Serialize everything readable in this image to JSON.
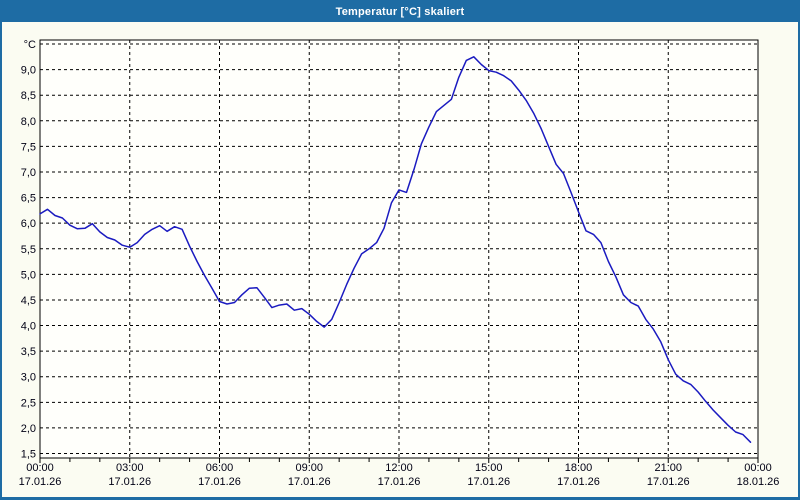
{
  "window": {
    "title": "Temperatur [°C] skaliert"
  },
  "colors": {
    "titlebar_bg": "#1e6ca4",
    "titlebar_text": "#ffffff",
    "window_border": "#1e6ca4",
    "content_bg": "#fbfcf2",
    "plot_bg": "#fffffb",
    "grid": "#000000",
    "axis": "#000000",
    "text": "#000014",
    "line": "#1b1bc0"
  },
  "chart_data": {
    "type": "line",
    "title": "Temperatur [°C] skaliert",
    "y_unit_label": "°C",
    "ylim": [
      1.4,
      9.6
    ],
    "y_gridlines_from": 1.5,
    "y_gridlines_to": 9.5,
    "y_gridline_step": 0.5,
    "grid": "dashed",
    "legend": "none",
    "xlim_hours": [
      0,
      24
    ],
    "x_minor_tick_interval_hours": 1,
    "x_major_tick_interval_hours": 3,
    "y_ticks": [
      {
        "value": 9.0,
        "label": "9,0"
      },
      {
        "value": 8.5,
        "label": "8,5"
      },
      {
        "value": 8.0,
        "label": "8,0"
      },
      {
        "value": 7.5,
        "label": "7,5"
      },
      {
        "value": 7.0,
        "label": "7,0"
      },
      {
        "value": 6.5,
        "label": "6,5"
      },
      {
        "value": 6.0,
        "label": "6,0"
      },
      {
        "value": 5.5,
        "label": "5,5"
      },
      {
        "value": 5.0,
        "label": "5,0"
      },
      {
        "value": 4.5,
        "label": "4,5"
      },
      {
        "value": 4.0,
        "label": "4,0"
      },
      {
        "value": 3.5,
        "label": "3,5"
      },
      {
        "value": 3.0,
        "label": "3,0"
      },
      {
        "value": 2.5,
        "label": "2,5"
      },
      {
        "value": 2.0,
        "label": "2,0"
      },
      {
        "value": 1.5,
        "label": "1,5"
      }
    ],
    "x_major_ticks": [
      {
        "hour": 0,
        "time": "00:00",
        "date": "17.01.26"
      },
      {
        "hour": 3,
        "time": "03:00",
        "date": "17.01.26"
      },
      {
        "hour": 6,
        "time": "06:00",
        "date": "17.01.26"
      },
      {
        "hour": 9,
        "time": "09:00",
        "date": "17.01.26"
      },
      {
        "hour": 12,
        "time": "12:00",
        "date": "17.01.26"
      },
      {
        "hour": 15,
        "time": "15:00",
        "date": "17.01.26"
      },
      {
        "hour": 18,
        "time": "18:00",
        "date": "17.01.26"
      },
      {
        "hour": 21,
        "time": "21:00",
        "date": "17.01.26"
      },
      {
        "hour": 24,
        "time": "00:00",
        "date": "18.01.26"
      }
    ],
    "series": [
      {
        "name": "Temperatur",
        "unit": "°C",
        "color": "#1b1bc0",
        "points": [
          [
            0.0,
            6.18
          ],
          [
            0.25,
            6.27
          ],
          [
            0.5,
            6.15
          ],
          [
            0.75,
            6.1
          ],
          [
            1.0,
            5.96
          ],
          [
            1.25,
            5.89
          ],
          [
            1.5,
            5.9
          ],
          [
            1.75,
            5.99
          ],
          [
            2.0,
            5.83
          ],
          [
            2.25,
            5.72
          ],
          [
            2.5,
            5.67
          ],
          [
            2.75,
            5.57
          ],
          [
            3.0,
            5.53
          ],
          [
            3.25,
            5.62
          ],
          [
            3.5,
            5.78
          ],
          [
            3.75,
            5.88
          ],
          [
            4.0,
            5.95
          ],
          [
            4.25,
            5.84
          ],
          [
            4.5,
            5.93
          ],
          [
            4.75,
            5.88
          ],
          [
            5.0,
            5.55
          ],
          [
            5.25,
            5.25
          ],
          [
            5.5,
            4.98
          ],
          [
            5.75,
            4.73
          ],
          [
            6.0,
            4.47
          ],
          [
            6.25,
            4.42
          ],
          [
            6.5,
            4.45
          ],
          [
            6.75,
            4.6
          ],
          [
            7.0,
            4.73
          ],
          [
            7.25,
            4.74
          ],
          [
            7.5,
            4.55
          ],
          [
            7.75,
            4.35
          ],
          [
            8.0,
            4.4
          ],
          [
            8.25,
            4.42
          ],
          [
            8.5,
            4.3
          ],
          [
            8.75,
            4.33
          ],
          [
            9.0,
            4.22
          ],
          [
            9.25,
            4.08
          ],
          [
            9.5,
            3.97
          ],
          [
            9.75,
            4.12
          ],
          [
            10.0,
            4.45
          ],
          [
            10.25,
            4.8
          ],
          [
            10.5,
            5.12
          ],
          [
            10.75,
            5.4
          ],
          [
            11.0,
            5.5
          ],
          [
            11.25,
            5.62
          ],
          [
            11.5,
            5.9
          ],
          [
            11.75,
            6.4
          ],
          [
            12.0,
            6.65
          ],
          [
            12.25,
            6.6
          ],
          [
            12.5,
            7.05
          ],
          [
            12.75,
            7.55
          ],
          [
            13.0,
            7.88
          ],
          [
            13.25,
            8.18
          ],
          [
            13.5,
            8.3
          ],
          [
            13.75,
            8.42
          ],
          [
            14.0,
            8.85
          ],
          [
            14.25,
            9.18
          ],
          [
            14.5,
            9.25
          ],
          [
            14.75,
            9.1
          ],
          [
            15.0,
            8.98
          ],
          [
            15.25,
            8.95
          ],
          [
            15.5,
            8.88
          ],
          [
            15.75,
            8.78
          ],
          [
            16.0,
            8.6
          ],
          [
            16.25,
            8.4
          ],
          [
            16.5,
            8.15
          ],
          [
            16.75,
            7.85
          ],
          [
            17.0,
            7.5
          ],
          [
            17.25,
            7.15
          ],
          [
            17.5,
            6.97
          ],
          [
            17.75,
            6.6
          ],
          [
            18.0,
            6.22
          ],
          [
            18.25,
            5.85
          ],
          [
            18.5,
            5.78
          ],
          [
            18.75,
            5.62
          ],
          [
            19.0,
            5.25
          ],
          [
            19.25,
            4.95
          ],
          [
            19.5,
            4.6
          ],
          [
            19.75,
            4.45
          ],
          [
            20.0,
            4.38
          ],
          [
            20.25,
            4.12
          ],
          [
            20.5,
            3.93
          ],
          [
            20.75,
            3.68
          ],
          [
            21.0,
            3.33
          ],
          [
            21.25,
            3.05
          ],
          [
            21.5,
            2.92
          ],
          [
            21.75,
            2.85
          ],
          [
            22.0,
            2.7
          ],
          [
            22.25,
            2.52
          ],
          [
            22.5,
            2.35
          ],
          [
            22.75,
            2.2
          ],
          [
            23.0,
            2.05
          ],
          [
            23.25,
            1.92
          ],
          [
            23.5,
            1.87
          ],
          [
            23.75,
            1.72
          ]
        ]
      }
    ]
  }
}
